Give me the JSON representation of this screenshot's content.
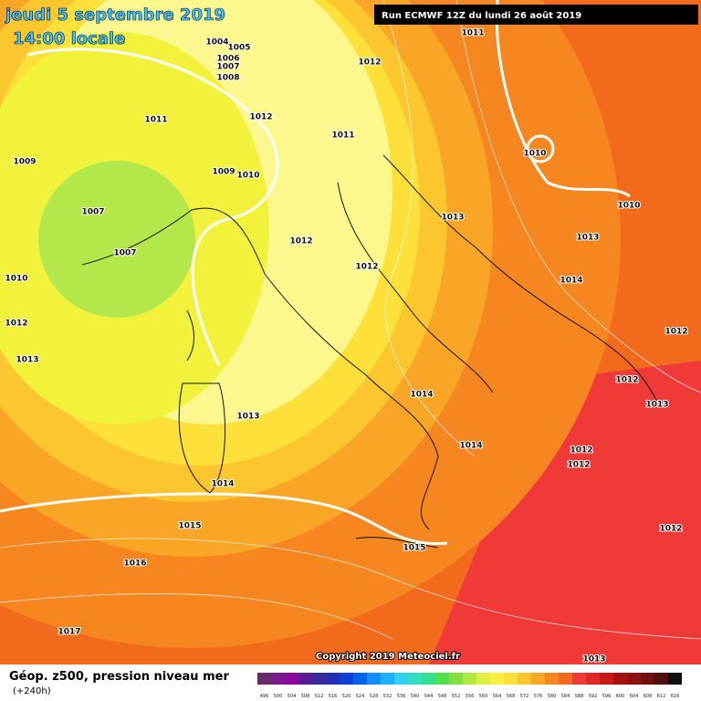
{
  "header": {
    "date": "jeudi 5 septembre 2019",
    "time": "14:00 locale",
    "run": "Run ECMWF 12Z du lundi 26 août 2019"
  },
  "isobar_labels": [
    "1004",
    "1005",
    "1006",
    "1007",
    "1008",
    "1011",
    "1012",
    "1011",
    "1012",
    "1011",
    "1010",
    "1009",
    "1009",
    "1010",
    "1010",
    "1007",
    "1013",
    "1012",
    "1013",
    "1007",
    "1012",
    "1010",
    "1014",
    "1012",
    "1012",
    "1013",
    "1012",
    "1014",
    "1013",
    "1013",
    "1014",
    "1012",
    "1012",
    "1014",
    "1015",
    "1012",
    "1015",
    "1016",
    "1017",
    "1013"
  ],
  "copyright": "Copyright 2019 Meteociel.fr",
  "legend": {
    "title": "Géop. z500, pression niveau mer",
    "lead": "(+240h)",
    "scale": [
      "496",
      "500",
      "504",
      "508",
      "512",
      "516",
      "520",
      "524",
      "528",
      "532",
      "536",
      "540",
      "544",
      "548",
      "552",
      "556",
      "560",
      "564",
      "568",
      "572",
      "576",
      "580",
      "584",
      "588",
      "592",
      "596",
      "600",
      "604",
      "608",
      "612",
      "616"
    ]
  }
}
